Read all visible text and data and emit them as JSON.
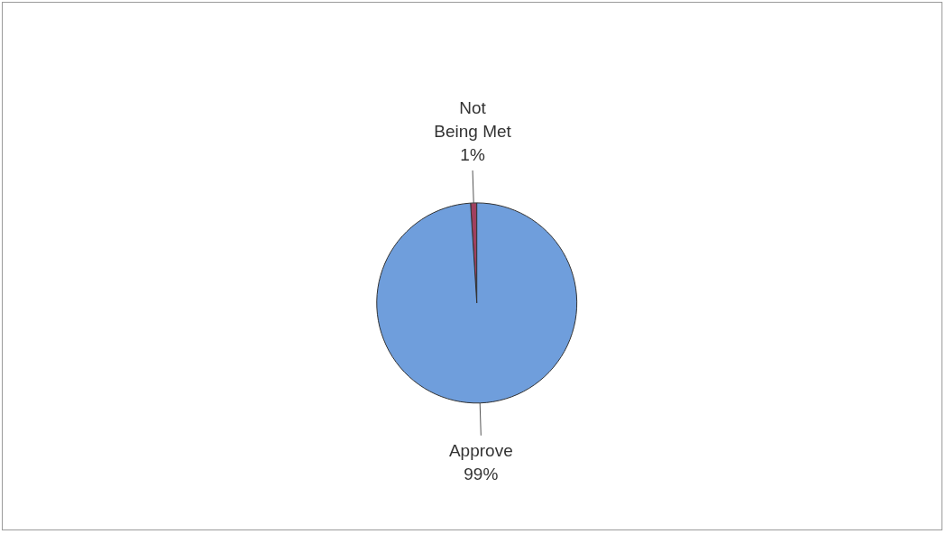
{
  "chart_data": {
    "type": "pie",
    "categories": [
      "Not Being Met",
      "Approve"
    ],
    "values": [
      1,
      99
    ],
    "value_labels": [
      "1%",
      "99%"
    ],
    "colors": [
      "#a0405e",
      "#6f9edc"
    ],
    "legend": false
  }
}
